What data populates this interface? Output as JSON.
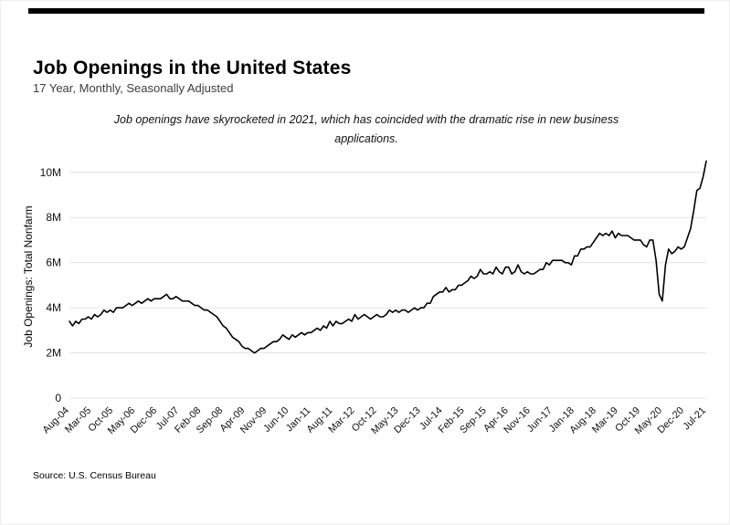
{
  "page": {
    "title": "Job Openings in the United States",
    "subtitle": "17 Year, Monthly, Seasonally Adjusted",
    "annotation": "Job openings have skyrocketed in 2021, which has coincided with the dramatic rise in new business applications.",
    "source": "Source:  U.S. Census Bureau",
    "colors": {
      "top_rule": "#000000",
      "line": "#000000",
      "grid": "#e4e4e4",
      "background": "#ffffff"
    }
  },
  "chart_data": {
    "type": "line",
    "title": "Job Openings in the United States",
    "subtitle": "17 Year, Monthly, Seasonally Adjusted",
    "annotation": "Job openings have skyrocketed in 2021, which has coincided with the dramatic rise in new business applications.",
    "ylabel": "Job Openings: Total Nonfarm",
    "xlabel": "",
    "legend": "none",
    "grid": "horizontal",
    "frequency": "monthly",
    "x_start": "Aug-2004",
    "x_end": "Jul-2021",
    "ylim": [
      0,
      10.8
    ],
    "y_tick_values": [
      0,
      2,
      4,
      6,
      8,
      10
    ],
    "y_tick_labels": [
      "0",
      "2M",
      "4M",
      "6M",
      "8M",
      "10M"
    ],
    "x_tick_every_n_months": 7,
    "x_tick_labels": [
      "Aug-04",
      "Mar-05",
      "Oct-05",
      "May-06",
      "Dec-06",
      "Jul-07",
      "Feb-08",
      "Sep-08",
      "Apr-09",
      "Nov-09",
      "Jun-10",
      "Jan-11",
      "Aug-11",
      "Mar-12",
      "Oct-12",
      "May-13",
      "Dec-13",
      "Jul-14",
      "Feb-15",
      "Sep-15",
      "Apr-16",
      "Nov-16",
      "Jun-17",
      "Jan-18",
      "Aug-18",
      "Mar-19",
      "Oct-19",
      "May-20",
      "Dec-20",
      "Jul-21"
    ],
    "series": [
      {
        "name": "Job Openings: Total Nonfarm",
        "units": "millions",
        "values": [
          3.4,
          3.2,
          3.4,
          3.3,
          3.5,
          3.5,
          3.6,
          3.5,
          3.7,
          3.6,
          3.7,
          3.9,
          3.8,
          3.9,
          3.8,
          4.0,
          4.0,
          4.0,
          4.1,
          4.2,
          4.1,
          4.2,
          4.3,
          4.2,
          4.3,
          4.4,
          4.3,
          4.4,
          4.4,
          4.4,
          4.5,
          4.6,
          4.4,
          4.4,
          4.5,
          4.4,
          4.3,
          4.3,
          4.3,
          4.2,
          4.1,
          4.1,
          4.0,
          3.9,
          3.9,
          3.8,
          3.7,
          3.6,
          3.4,
          3.2,
          3.1,
          2.9,
          2.7,
          2.6,
          2.5,
          2.3,
          2.2,
          2.2,
          2.1,
          2.0,
          2.1,
          2.2,
          2.2,
          2.3,
          2.4,
          2.5,
          2.5,
          2.6,
          2.8,
          2.7,
          2.6,
          2.8,
          2.7,
          2.8,
          2.9,
          2.8,
          2.9,
          2.9,
          3.0,
          3.1,
          3.0,
          3.2,
          3.1,
          3.4,
          3.2,
          3.4,
          3.3,
          3.3,
          3.4,
          3.5,
          3.4,
          3.7,
          3.5,
          3.6,
          3.7,
          3.6,
          3.5,
          3.6,
          3.7,
          3.6,
          3.6,
          3.7,
          3.9,
          3.8,
          3.9,
          3.8,
          3.9,
          3.9,
          3.8,
          3.9,
          4.0,
          3.9,
          4.0,
          4.0,
          4.2,
          4.2,
          4.5,
          4.6,
          4.7,
          4.7,
          4.9,
          4.7,
          4.8,
          4.8,
          5.0,
          5.0,
          5.1,
          5.2,
          5.4,
          5.3,
          5.4,
          5.7,
          5.5,
          5.5,
          5.6,
          5.5,
          5.8,
          5.6,
          5.5,
          5.8,
          5.8,
          5.5,
          5.6,
          5.9,
          5.6,
          5.5,
          5.6,
          5.5,
          5.5,
          5.6,
          5.7,
          5.7,
          6.0,
          5.9,
          6.1,
          6.1,
          6.1,
          6.1,
          6.0,
          6.0,
          5.9,
          6.3,
          6.3,
          6.6,
          6.6,
          6.7,
          6.7,
          6.9,
          7.1,
          7.3,
          7.2,
          7.3,
          7.2,
          7.4,
          7.1,
          7.3,
          7.2,
          7.2,
          7.2,
          7.1,
          7.0,
          7.0,
          7.0,
          6.8,
          6.7,
          7.0,
          7.0,
          6.1,
          4.6,
          4.3,
          5.9,
          6.6,
          6.4,
          6.5,
          6.7,
          6.6,
          6.7,
          7.1,
          7.5,
          8.3,
          9.2,
          9.3,
          9.8,
          10.5
        ]
      }
    ]
  }
}
